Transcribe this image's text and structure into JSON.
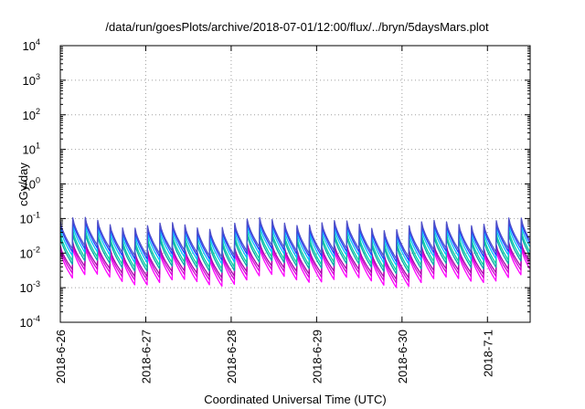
{
  "chart_data": {
    "type": "line",
    "title": "/data/run/goesPlots/archive/2018-07-01/12:00/flux/../bryn/5daysMars.plot",
    "xlabel": "Coordinated Universal Time (UTC)",
    "ylabel": "cGy/day",
    "yscale": "log",
    "ylim": [
      0.0001,
      10000
    ],
    "xlim": [
      "2018-06-26 00:00",
      "2018-07-01 12:00"
    ],
    "grid": true,
    "legend": "none",
    "x_ticks": [
      "2018-6-26",
      "2018-6-27",
      "2018-6-28",
      "2018-6-29",
      "2018-6-30",
      "2018-7-1"
    ],
    "y_ticks": [
      {
        "base": "10",
        "exp": "-4"
      },
      {
        "base": "10",
        "exp": "-3"
      },
      {
        "base": "10",
        "exp": "-2"
      },
      {
        "base": "10",
        "exp": "-1"
      },
      {
        "base": "10",
        "exp": "0"
      },
      {
        "base": "10",
        "exp": "1"
      },
      {
        "base": "10",
        "exp": "2"
      },
      {
        "base": "10",
        "exp": "3"
      },
      {
        "base": "10",
        "exp": "4"
      }
    ],
    "sawtooth_period_hours": 3.5,
    "series": [
      {
        "color": "#ff00ff",
        "peak": 0.01,
        "trough": 0.0016
      },
      {
        "color": "#d400d4",
        "peak": 0.012,
        "trough": 0.0022
      },
      {
        "color": "#aa00aa",
        "peak": 0.014,
        "trough": 0.0028
      },
      {
        "color": "#00aaaa",
        "peak": 0.025,
        "trough": 0.004
      },
      {
        "color": "#00d0a0",
        "peak": 0.032,
        "trough": 0.005
      },
      {
        "color": "#00c0ff",
        "peak": 0.045,
        "trough": 0.007
      },
      {
        "color": "#2040ff",
        "peak": 0.06,
        "trough": 0.009
      },
      {
        "color": "#5050c8",
        "peak": 0.07,
        "trough": 0.011
      }
    ]
  }
}
